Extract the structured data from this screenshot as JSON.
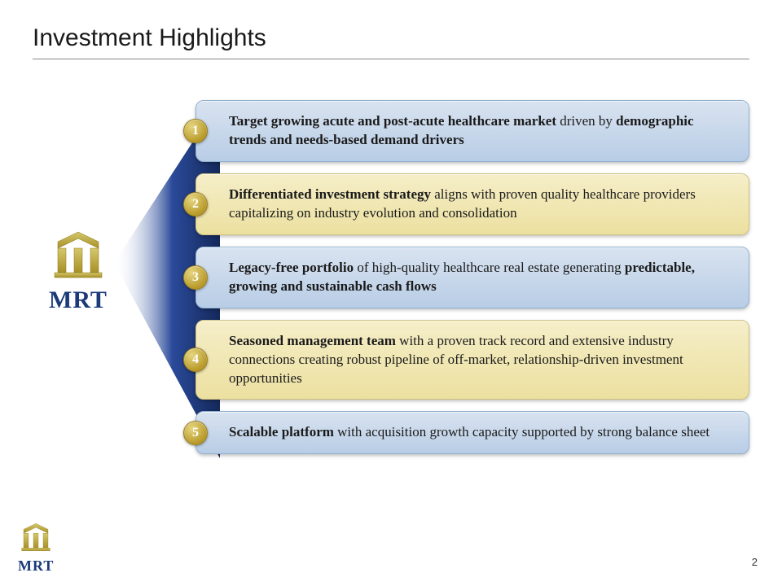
{
  "title": "Investment Highlights",
  "logo_text": "MRT",
  "page_number": "2",
  "colors": {
    "title_text": "#1a1a1a",
    "title_rule": "#888888",
    "logo_text": "#1a3a7a",
    "logo_gold_light": "#d4c86a",
    "logo_gold_dark": "#a89028",
    "badge_gold_light": "#e6d680",
    "badge_gold_dark": "#b89a2a",
    "badge_border": "#9a7f1e",
    "badge_text": "#ffffff",
    "card_blue_top": "#d9e3f0",
    "card_blue_bottom": "#b8cde6",
    "card_blue_border": "#90b0d0",
    "card_yellow_top": "#f5eec8",
    "card_yellow_bottom": "#ece0a0",
    "card_yellow_border": "#cfc080",
    "connector_navy": "#14285a",
    "background": "#ffffff"
  },
  "typography": {
    "title_fontsize": 30,
    "card_fontsize": 17,
    "logo_fontsize": 30,
    "footer_logo_fontsize": 18,
    "pagenum_fontsize": 13,
    "badge_fontsize": 16
  },
  "layout": {
    "card_border_radius": 10,
    "card_gap": 14,
    "badge_diameter": 30
  },
  "highlights": [
    {
      "num": "1",
      "variant": "blue",
      "html": "<b>Target growing acute and post-acute healthcare market</b> driven by <b>demographic trends and needs-based demand drivers</b>"
    },
    {
      "num": "2",
      "variant": "yellow",
      "html": "<b>Differentiated investment strategy</b> aligns with proven quality healthcare providers capitalizing on industry evolution and consolidation"
    },
    {
      "num": "3",
      "variant": "blue",
      "html": "<b>Legacy-free portfolio</b> of high-quality healthcare real estate generating <b>predictable, growing and sustainable cash flows</b>"
    },
    {
      "num": "4",
      "variant": "yellow",
      "html": "<b>Seasoned management team</b> with a proven track record and extensive industry connections creating robust pipeline of off-market, relationship-driven investment opportunities"
    },
    {
      "num": "5",
      "variant": "blue",
      "html": "<b>Scalable platform</b> with acquisition growth capacity supported by strong balance sheet"
    }
  ]
}
